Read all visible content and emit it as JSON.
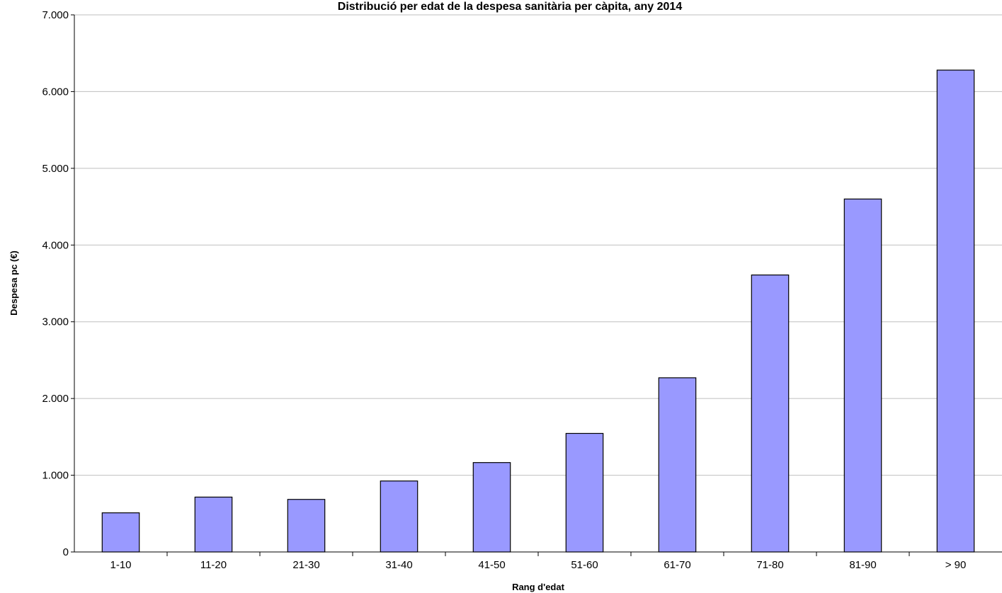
{
  "chart_data": {
    "type": "bar",
    "title": "Distribució per edat de la despesa sanitària per càpita, any 2014",
    "xlabel": "Rang d'edat",
    "ylabel": "Despesa pc (€)",
    "categories": [
      "1-10",
      "11-20",
      "21-30",
      "31-40",
      "41-50",
      "51-60",
      "61-70",
      "71-80",
      "81-90",
      "> 90"
    ],
    "values": [
      510,
      715,
      685,
      925,
      1165,
      1545,
      2270,
      3610,
      4600,
      6280
    ],
    "ylim": [
      0,
      7000
    ],
    "yticks": [
      0,
      1000,
      2000,
      3000,
      4000,
      5000,
      6000,
      7000
    ],
    "ytick_labels": [
      "0",
      "1.000",
      "2.000",
      "3.000",
      "4.000",
      "5.000",
      "6.000",
      "7.000"
    ],
    "bar_color": "#9999ff",
    "grid": true,
    "legend": "none"
  }
}
